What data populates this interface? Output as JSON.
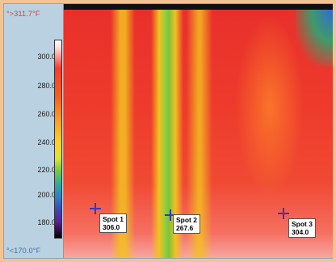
{
  "scale": {
    "max_label": "°>311.7°F",
    "min_label": "°<170.0°F",
    "ticks": [
      "300.0",
      "280.0",
      "260.0",
      "240.0",
      "220.0",
      "200.0",
      "180.0"
    ]
  },
  "spots": [
    {
      "label": "Spot 1",
      "value": "306.0"
    },
    {
      "label": "Spot 2",
      "value": "267.6"
    },
    {
      "label": "Spot 3",
      "value": "304.0"
    }
  ],
  "colors": {
    "background": "#f3c493",
    "panel": "#b9d1e0",
    "hot": "#e8302b",
    "warm_stripe": "#f2c21f",
    "cool_stripe": "#7cc23d"
  }
}
